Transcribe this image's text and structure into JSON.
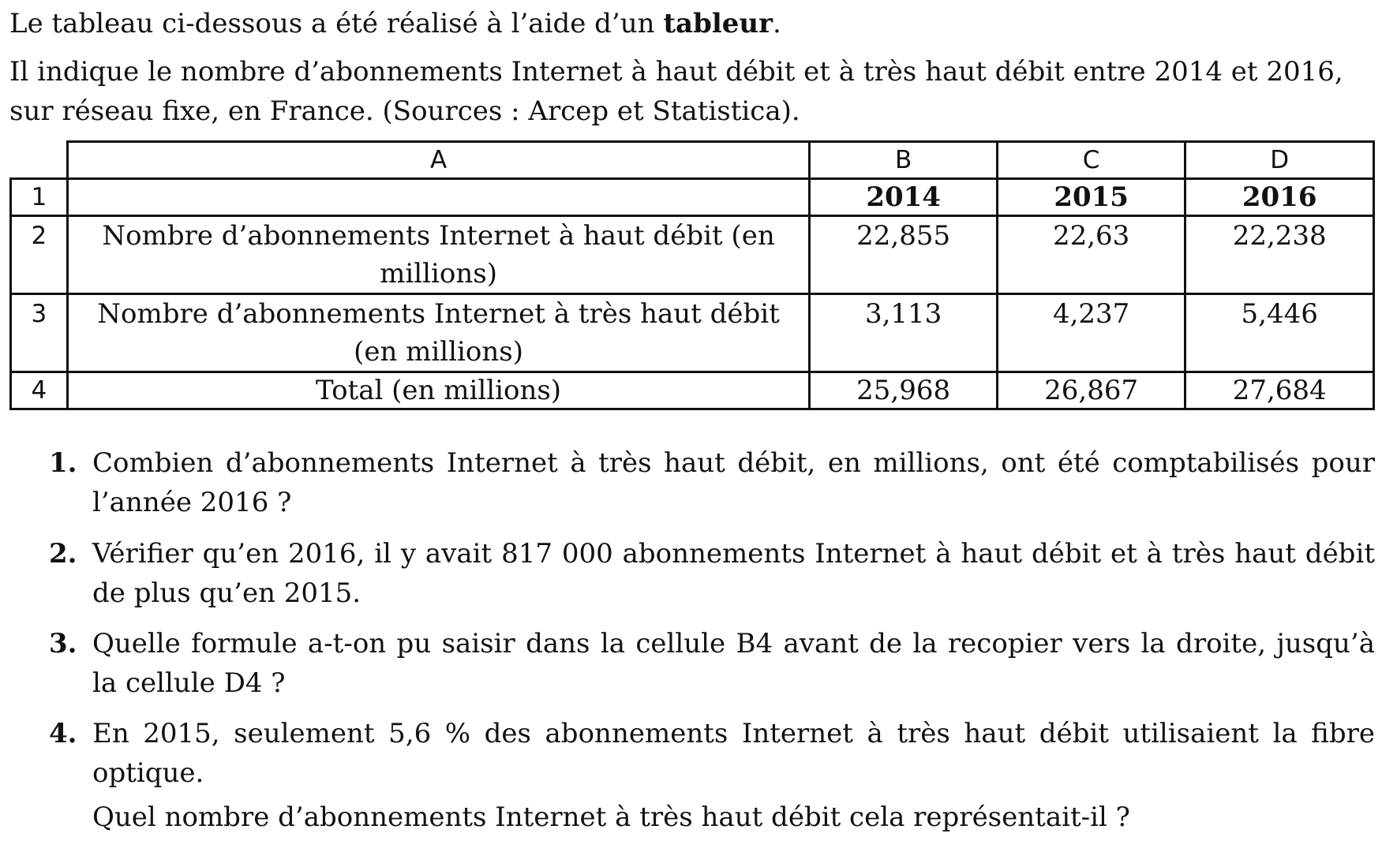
{
  "intro": {
    "line1_before": "Le tableau ci-dessous a été réalisé à l’aide d’un ",
    "line1_bold": "tableur",
    "line1_after": ".",
    "line2": "Il indique le nombre d’abonnements Internet à haut débit et à très haut débit entre 2014 et 2016, sur réseau fixe, en France. (Sources : Arcep et Statistica)."
  },
  "spreadsheet": {
    "column_headers": [
      "A",
      "B",
      "C",
      "D"
    ],
    "rows": [
      {
        "num": "1",
        "label": "",
        "values": [
          "2014",
          "2015",
          "2016"
        ]
      },
      {
        "num": "2",
        "label": "Nombre d’abonnements Internet à haut débit (en millions)",
        "values": [
          "22,855",
          "22,63",
          "22,238"
        ]
      },
      {
        "num": "3",
        "label": "Nombre d’abonnements Internet à très haut débit (en millions)",
        "values": [
          "3,113",
          "4,237",
          "5,446"
        ]
      },
      {
        "num": "4",
        "label": "Total (en millions)",
        "values": [
          "25,968",
          "26,867",
          "27,684"
        ]
      }
    ]
  },
  "questions": [
    {
      "num": "1.",
      "text": "Combien d’abonnements Internet à très haut débit, en millions, ont été comptabilisés pour l’année 2016 ?"
    },
    {
      "num": "2.",
      "text": "Vérifier qu’en 2016, il y avait 817 000 abonnements Internet à haut débit et à très haut débit de plus qu’en 2015."
    },
    {
      "num": "3.",
      "text": "Quelle formule a-t-on pu saisir dans la cellule B4 avant de la recopier vers la droite, jusqu’à la cellule D4 ?"
    },
    {
      "num": "4.",
      "text": "En 2015, seulement 5,6 % des abonnements Internet à très haut débit utilisaient la fibre optique.",
      "text2": "Quel nombre d’abonnements Internet à très haut débit cela représentait-il ?"
    }
  ]
}
